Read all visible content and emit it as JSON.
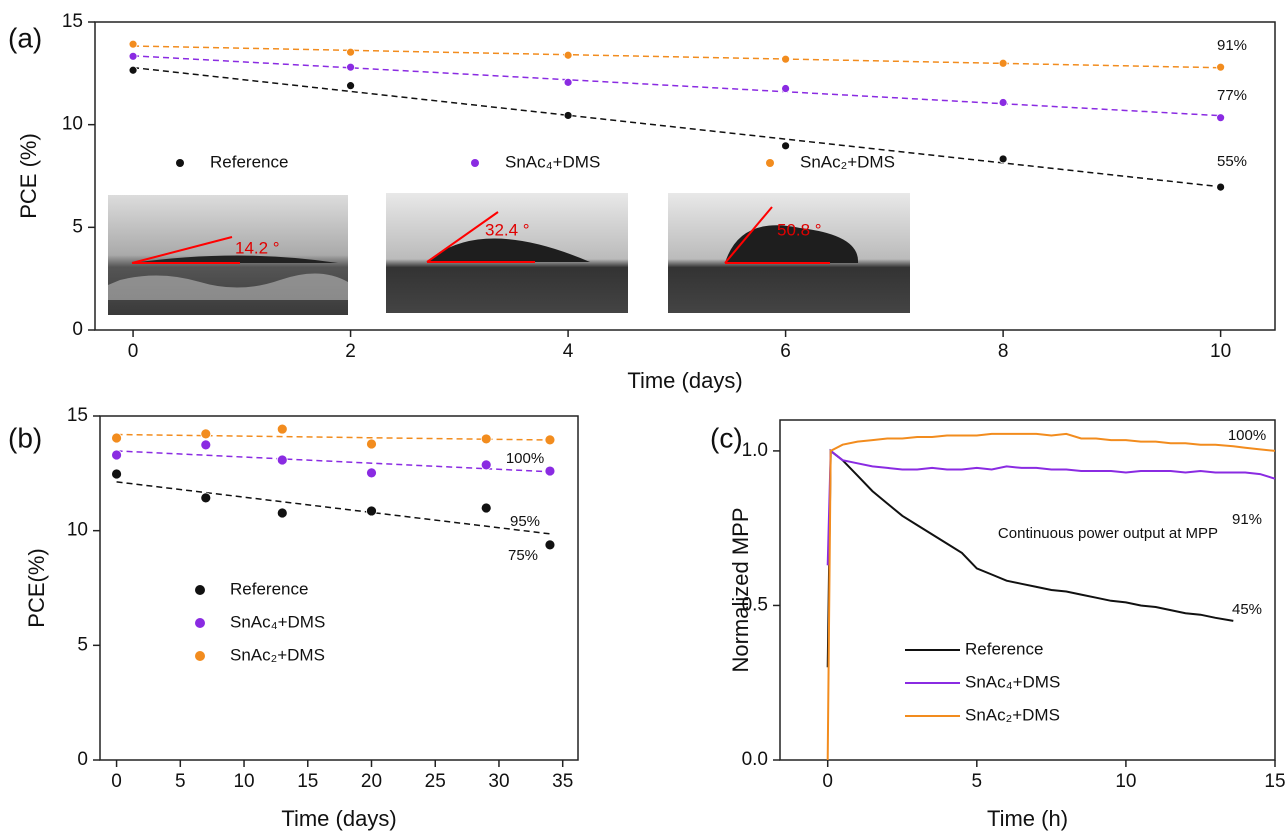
{
  "chart_data": [
    {
      "type": "scatter",
      "label": "(a)",
      "x_label": "Time (days)",
      "y_label": "PCE (%)",
      "xlim": [
        -0.35,
        10.5
      ],
      "ylim": [
        0,
        15
      ],
      "xticks": [
        0,
        2,
        4,
        6,
        8,
        10
      ],
      "yticks": [
        0,
        5,
        10,
        15
      ],
      "fit": true,
      "x": [
        0,
        2,
        4,
        6,
        8,
        10
      ],
      "series": [
        {
          "name": "Reference",
          "color": "#111111",
          "values": [
            12.65,
            11.9,
            10.45,
            8.97,
            8.33,
            6.96
          ]
        },
        {
          "name": "SnAc₄+DMS",
          "color": "#8a2be2",
          "values": [
            13.33,
            12.8,
            12.06,
            11.76,
            11.08,
            10.34
          ]
        },
        {
          "name": "SnAc₂+DMS",
          "color": "#f28c1e",
          "values": [
            13.92,
            13.53,
            13.38,
            13.19,
            12.99,
            12.8
          ]
        }
      ],
      "annotations": [
        "91%",
        "77%",
        "55%"
      ],
      "inset_labels": [
        "14.2 °",
        "32.4 °",
        "50.8 °"
      ]
    },
    {
      "type": "scatter",
      "label": "(b)",
      "x_label": "Time (days)",
      "y_label": "PCE(%)",
      "xlim": [
        -1.3,
        36.2
      ],
      "ylim": [
        0,
        15
      ],
      "xticks": [
        0,
        5,
        10,
        15,
        20,
        25,
        30,
        35
      ],
      "yticks": [
        0,
        5,
        10,
        15
      ],
      "fit": true,
      "x": [
        0,
        7,
        13,
        20,
        29,
        34
      ],
      "series": [
        {
          "name": "Reference",
          "color": "#111111",
          "values": [
            12.47,
            11.43,
            10.77,
            10.86,
            10.99,
            9.38
          ]
        },
        {
          "name": "SnAc₄+DMS",
          "color": "#8a2be2",
          "values": [
            13.3,
            13.74,
            13.08,
            12.52,
            12.87,
            12.6
          ]
        },
        {
          "name": "SnAc₂+DMS",
          "color": "#f28c1e",
          "values": [
            14.04,
            14.22,
            14.43,
            13.78,
            14.0,
            13.96
          ]
        }
      ],
      "annotations": [
        "100%",
        "95%",
        "75%"
      ]
    },
    {
      "type": "line",
      "label": "(c)",
      "x_label": "Time (h)",
      "y_label": "Normalized MPP",
      "xlim": [
        -1.6,
        15
      ],
      "ylim": [
        0,
        1.1
      ],
      "xticks": [
        0,
        5,
        10,
        15
      ],
      "yticks": [
        {
          "value": 0,
          "label": "0.0"
        },
        {
          "value": 0.5,
          "label": "0.5"
        },
        {
          "value": 1,
          "label": "1.0"
        }
      ],
      "x": [
        0,
        0.1,
        0.5,
        1,
        1.5,
        2,
        2.5,
        3,
        3.5,
        4,
        4.5,
        5,
        5.5,
        6,
        6.5,
        7,
        7.5,
        8,
        8.5,
        9,
        9.5,
        10,
        10.5,
        11,
        11.5,
        12,
        12.5,
        13,
        13.6,
        14,
        14.5,
        15
      ],
      "series": [
        {
          "name": "Reference",
          "color": "#111111",
          "values": [
            0.3,
            1.0,
            0.97,
            0.92,
            0.87,
            0.83,
            0.79,
            0.76,
            0.73,
            0.7,
            0.67,
            0.62,
            0.6,
            0.58,
            0.57,
            0.56,
            0.55,
            0.545,
            0.535,
            0.525,
            0.515,
            0.51,
            0.5,
            0.495,
            0.485,
            0.475,
            0.47,
            0.46,
            0.45,
            null,
            null,
            null
          ]
        },
        {
          "name": "SnAc₄+DMS",
          "color": "#8a2be2",
          "values": [
            0.63,
            1.0,
            0.97,
            0.96,
            0.95,
            0.945,
            0.94,
            0.94,
            0.945,
            0.94,
            0.94,
            0.945,
            0.94,
            0.95,
            0.945,
            0.945,
            0.94,
            0.94,
            0.935,
            0.935,
            0.935,
            0.93,
            0.935,
            0.935,
            0.935,
            0.93,
            0.935,
            0.93,
            0.93,
            0.93,
            0.925,
            0.91
          ]
        },
        {
          "name": "SnAc₂+DMS",
          "color": "#f28c1e",
          "values": [
            0,
            1.0,
            1.02,
            1.03,
            1.035,
            1.04,
            1.04,
            1.045,
            1.045,
            1.05,
            1.05,
            1.05,
            1.055,
            1.055,
            1.055,
            1.055,
            1.05,
            1.055,
            1.04,
            1.04,
            1.035,
            1.035,
            1.03,
            1.03,
            1.025,
            1.025,
            1.02,
            1.02,
            1.015,
            1.01,
            1.005,
            1.0
          ]
        }
      ],
      "annotations": [
        "100%",
        "91%",
        "45%",
        "Continuous power output at MPP"
      ]
    }
  ]
}
